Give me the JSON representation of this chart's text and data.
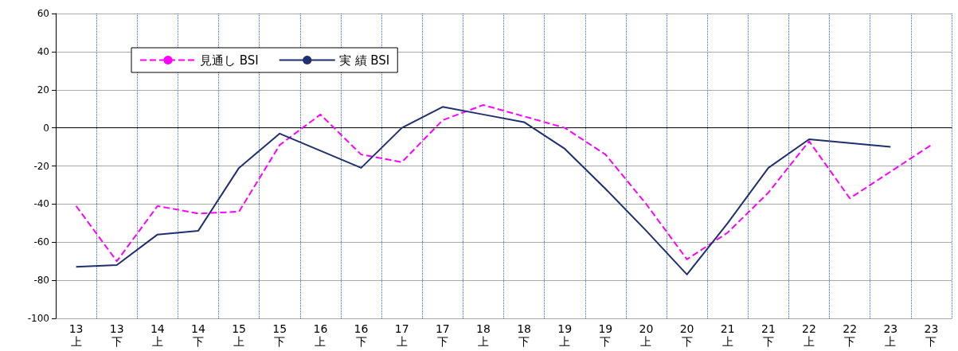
{
  "chart_data": {
    "type": "line",
    "categories": [
      "13\n上",
      "13\n下",
      "14\n上",
      "14\n下",
      "15\n上",
      "15\n下",
      "16\n上",
      "16\n下",
      "17\n上",
      "17\n下",
      "18\n上",
      "18\n下",
      "19\n上",
      "19\n下",
      "20\n上",
      "20\n下",
      "21\n上",
      "21\n下",
      "22\n上",
      "22\n下",
      "23\n上",
      "23\n下"
    ],
    "series": [
      {
        "name": "見通し BSI",
        "color": "#ff00ff",
        "line_style": "dashed",
        "values": [
          -41,
          -70,
          -41,
          -45,
          -44,
          -9,
          7,
          -14,
          -18,
          4,
          12,
          6,
          0,
          -14,
          -40,
          -69,
          -55,
          -34,
          -7,
          -37,
          -23,
          -9
        ]
      },
      {
        "name": "実 績 BSI",
        "color": "#1f2f6f",
        "line_style": "solid",
        "values": [
          -73,
          -72,
          -56,
          -54,
          -21,
          -3,
          -12,
          -21,
          0,
          11,
          7,
          3,
          -11,
          -32,
          -54,
          -77,
          -50,
          -21,
          -6,
          -8,
          -10,
          null
        ]
      }
    ],
    "ylim": [
      -100,
      60
    ],
    "yticks": [
      -100,
      -80,
      -60,
      -40,
      -20,
      0,
      20,
      40,
      60
    ],
    "grid": true,
    "legend": "top left",
    "marker": "none"
  }
}
